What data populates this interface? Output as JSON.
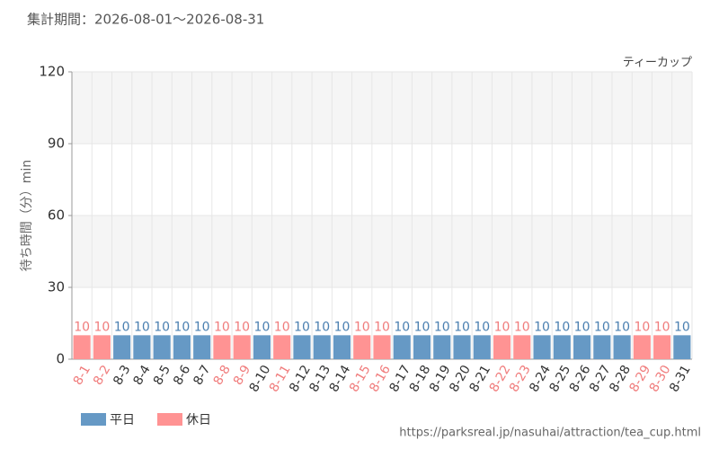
{
  "chart_data": {
    "type": "bar",
    "title": "集計期間：2026-08-01～2026-08-31",
    "subtitle": "ティーカップ",
    "y_label": "待ち時間（分）min",
    "source": "https://parksreal.jp/nasuhai/attraction/tea_cup.html",
    "categories": [
      "8-1",
      "8-2",
      "8-3",
      "8-4",
      "8-5",
      "8-6",
      "8-7",
      "8-8",
      "8-9",
      "8-10",
      "8-11",
      "8-12",
      "8-13",
      "8-14",
      "8-15",
      "8-16",
      "8-17",
      "8-18",
      "8-19",
      "8-20",
      "8-21",
      "8-22",
      "8-23",
      "8-24",
      "8-25",
      "8-26",
      "8-27",
      "8-28",
      "8-29",
      "8-30",
      "8-31"
    ],
    "series": [
      {
        "name": "平日",
        "color": "#6699c5",
        "label_color": "#4a7fb0",
        "values": [
          null,
          null,
          10,
          10,
          10,
          10,
          10,
          null,
          null,
          10,
          null,
          10,
          10,
          10,
          null,
          null,
          10,
          10,
          10,
          10,
          10,
          null,
          null,
          10,
          10,
          10,
          10,
          10,
          null,
          null,
          10
        ]
      },
      {
        "name": "休日",
        "color": "#ff9393",
        "label_color": "#f07c7c",
        "values": [
          10,
          10,
          null,
          null,
          null,
          null,
          null,
          10,
          10,
          null,
          10,
          null,
          null,
          null,
          10,
          10,
          null,
          null,
          null,
          null,
          null,
          10,
          10,
          null,
          null,
          null,
          null,
          null,
          10,
          10,
          null
        ]
      }
    ],
    "ylim": [
      0,
      120
    ],
    "yticks": [
      0,
      30,
      60,
      90,
      120
    ],
    "grid": true
  }
}
